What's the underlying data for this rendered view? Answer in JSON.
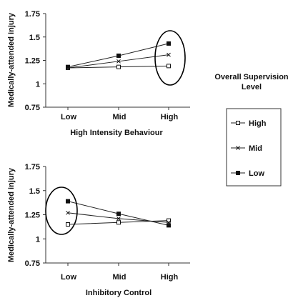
{
  "legend": {
    "title_line1": "Overall Supervision",
    "title_line2": "Level",
    "items": [
      {
        "label": "High",
        "marker": "open-square"
      },
      {
        "label": "Mid",
        "marker": "x"
      },
      {
        "label": "Low",
        "marker": "filled-square"
      }
    ]
  },
  "chart_data": [
    {
      "type": "line",
      "title": "",
      "xlabel": "High Intensity Behaviour",
      "ylabel": "Medically-attended injury",
      "categories": [
        "Low",
        "Mid",
        "High"
      ],
      "ylim": [
        0.75,
        1.75
      ],
      "yticks": [
        "0.75",
        "1",
        "1.25",
        "1.5",
        "1.75"
      ],
      "grid": false,
      "annotation": "ellipse around High",
      "series": [
        {
          "name": "High",
          "marker": "open-square",
          "values": [
            1.17,
            1.18,
            1.19
          ]
        },
        {
          "name": "Mid",
          "marker": "x",
          "values": [
            1.17,
            1.24,
            1.31
          ]
        },
        {
          "name": "Low",
          "marker": "filled-square",
          "values": [
            1.18,
            1.3,
            1.43
          ]
        }
      ]
    },
    {
      "type": "line",
      "title": "",
      "xlabel": "Inhibitory Control",
      "ylabel": "Medically-attended injury",
      "categories": [
        "Low",
        "Mid",
        "High"
      ],
      "ylim": [
        0.75,
        1.75
      ],
      "yticks": [
        "0.75",
        "1",
        "1.25",
        "1.5",
        "1.75"
      ],
      "grid": false,
      "annotation": "ellipse around Low",
      "series": [
        {
          "name": "High",
          "marker": "open-square",
          "values": [
            1.15,
            1.17,
            1.19
          ]
        },
        {
          "name": "Mid",
          "marker": "x",
          "values": [
            1.27,
            1.21,
            1.17
          ]
        },
        {
          "name": "Low",
          "marker": "filled-square",
          "values": [
            1.39,
            1.26,
            1.14
          ]
        }
      ]
    }
  ]
}
